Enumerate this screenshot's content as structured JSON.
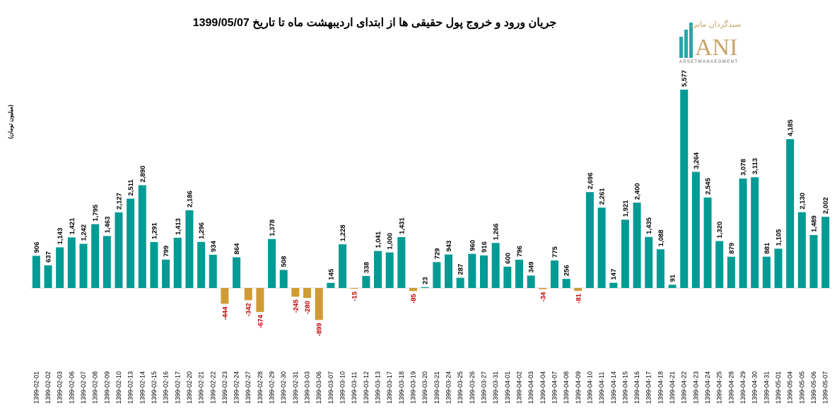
{
  "logo": {
    "brand_fa": "سبدگردان مانی",
    "brand_mark": "ANI",
    "brand_en": "ASSETMANAEGMENT"
  },
  "colors": {
    "positive": "#009B94",
    "negative": "#D09A35",
    "negative_label": "#C00000",
    "positive_label": "#000000"
  },
  "chart_data": {
    "type": "bar",
    "title": "جریان ورود و خروج پول حقیقی ها از ابتدای اردیبهشت ماه تا تاریخ 1399/05/07",
    "ylabel": "(میلیون تومان)",
    "xlabel": "",
    "ylim": [
      -1200,
      5600
    ],
    "grid": false,
    "categories": [
      "1399-02-01",
      "1399-02-02",
      "1399-02-03",
      "1399-02-06",
      "1399-02-07",
      "1399-02-08",
      "1399-02-09",
      "1399-02-10",
      "1399-02-13",
      "1399-02-14",
      "1399-02-15",
      "1399-02-16",
      "1399-02-17",
      "1399-02-20",
      "1399-02-21",
      "1399-02-22",
      "1399-02-23",
      "1399-02-24",
      "1399-02-27",
      "1399-02-28",
      "1399-02-29",
      "1399-02-30",
      "1399-02-31",
      "1399-03-03",
      "1399-03-06",
      "1399-03-07",
      "1399-03-10",
      "1399-03-11",
      "1399-03-12",
      "1399-03-13",
      "1399-03-17",
      "1399-03-18",
      "1399-03-19",
      "1399-03-20",
      "1399-03-21",
      "1399-03-24",
      "1399-03-25",
      "1399-03-26",
      "1399-03-27",
      "1399-03-31",
      "1399-04-01",
      "1399-04-02",
      "1399-04-03",
      "1399-04-04",
      "1399-04-07",
      "1399-04-08",
      "1399-04-09",
      "1399-04-10",
      "1399-04-11",
      "1399-04-14",
      "1399-04-15",
      "1399-04-16",
      "1399-04-17",
      "1399-04-18",
      "1399-04-21",
      "1399-04-22",
      "1399-04-23",
      "1399-04-24",
      "1399-04-25",
      "1399-04-28",
      "1399-04-29",
      "1399-04-30",
      "1399-04-31",
      "1399-05-01",
      "1399-05-04",
      "1399-05-05",
      "1399-05-06",
      "1399-05-07"
    ],
    "values": [
      906,
      637,
      1143,
      1421,
      1242,
      1795,
      1463,
      2127,
      2511,
      2890,
      1291,
      799,
      1413,
      2186,
      1296,
      934,
      -444,
      864,
      -342,
      -674,
      1378,
      508,
      -245,
      -280,
      -899,
      145,
      1228,
      -15,
      338,
      1041,
      1000,
      1431,
      -85,
      23,
      729,
      943,
      287,
      960,
      916,
      1266,
      600,
      796,
      349,
      -34,
      775,
      256,
      -81,
      2696,
      2261,
      147,
      1921,
      2400,
      1435,
      1088,
      91,
      5577,
      3264,
      2545,
      1320,
      879,
      3078,
      3113,
      881,
      1105,
      4185,
      2130,
      1489,
      2002
    ]
  }
}
